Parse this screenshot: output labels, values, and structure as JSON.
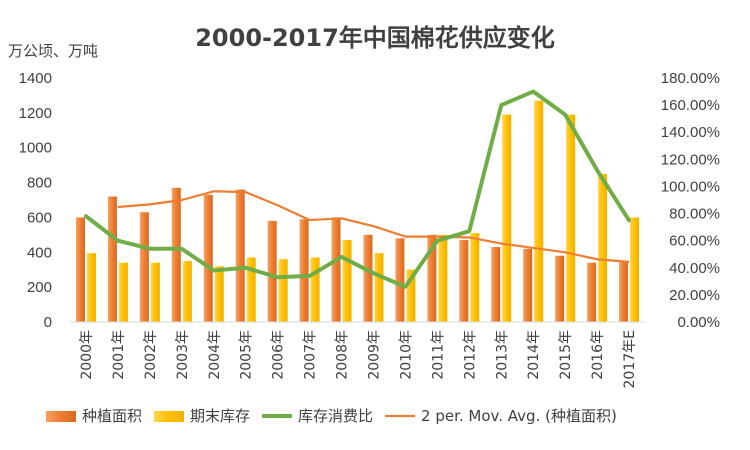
{
  "chart_data": {
    "type": "bar",
    "title": "2000-2017年中国棉花供应变化",
    "ylabel": "万公顷、万吨",
    "ylim": [
      0,
      1400
    ],
    "yticks": [
      0,
      200,
      400,
      600,
      800,
      1000,
      1200,
      1400
    ],
    "y2lim": [
      0,
      180
    ],
    "y2ticks": [
      "0.00%",
      "20.00%",
      "40.00%",
      "60.00%",
      "80.00%",
      "100.00%",
      "120.00%",
      "140.00%",
      "160.00%",
      "180.00%"
    ],
    "y2tick_values": [
      0,
      20,
      40,
      60,
      80,
      100,
      120,
      140,
      160,
      180
    ],
    "categories": [
      "2000年",
      "2001年",
      "2002年",
      "2003年",
      "2004年",
      "2005年",
      "2006年",
      "2007年",
      "2008年",
      "2009年",
      "2010年",
      "2011年",
      "2012年",
      "2013年",
      "2014年",
      "2015年",
      "2016年",
      "2017年E"
    ],
    "series": [
      {
        "name": "种植面积",
        "kind": "bar",
        "axis": "left",
        "color": "#ED7D31",
        "values": [
          600,
          720,
          630,
          770,
          730,
          760,
          580,
          590,
          600,
          500,
          480,
          500,
          470,
          430,
          420,
          380,
          340,
          350
        ]
      },
      {
        "name": "期末库存",
        "kind": "bar",
        "axis": "left",
        "color": "#FFC000",
        "values": [
          395,
          340,
          340,
          350,
          320,
          370,
          360,
          370,
          470,
          395,
          300,
          500,
          510,
          1190,
          1270,
          1190,
          850,
          600
        ]
      },
      {
        "name": "库存消费比",
        "kind": "line",
        "axis": "right",
        "color": "#70AD47",
        "values": [
          78,
          60,
          54,
          54,
          38,
          40,
          33,
          34,
          48,
          36,
          26,
          60,
          67,
          160,
          170,
          153,
          112,
          75
        ]
      },
      {
        "name": "2 per. Mov. Avg. (种植面积)",
        "kind": "trend",
        "axis": "left",
        "color": "#ED7D31",
        "values": [
          null,
          660,
          675,
          700,
          750,
          745,
          670,
          585,
          595,
          550,
          490,
          490,
          485,
          450,
          425,
          400,
          360,
          345
        ]
      }
    ],
    "legend": "bottom",
    "grid": false
  }
}
